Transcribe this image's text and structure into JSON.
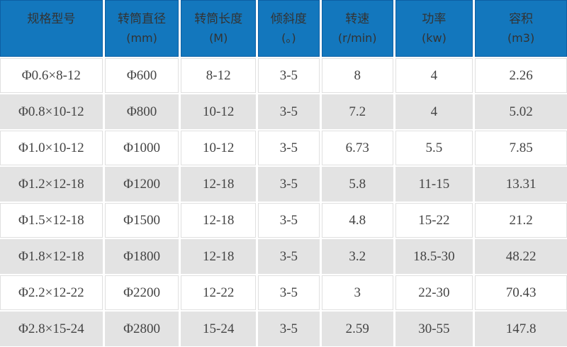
{
  "chart_data": {
    "type": "table",
    "columns": [
      {
        "title": "规格型号",
        "unit": ""
      },
      {
        "title": "转筒直径",
        "unit": "(mm)"
      },
      {
        "title": "转筒长度",
        "unit": "(M)"
      },
      {
        "title": "倾斜度",
        "unit": "(。)"
      },
      {
        "title": "转速",
        "unit": "(r/min)"
      },
      {
        "title": "功率",
        "unit": "(kw)"
      },
      {
        "title": "容积",
        "unit": "(m3)"
      }
    ],
    "rows": [
      [
        "Φ0.6×8-12",
        "Φ600",
        "8-12",
        "3-5",
        "8",
        "4",
        "2.26"
      ],
      [
        "Φ0.8×10-12",
        "Φ800",
        "10-12",
        "3-5",
        "7.2",
        "4",
        "5.02"
      ],
      [
        "Φ1.0×10-12",
        "Φ1000",
        "10-12",
        "3-5",
        "6.73",
        "5.5",
        "7.85"
      ],
      [
        "Φ1.2×12-18",
        "Φ1200",
        "12-18",
        "3-5",
        "5.8",
        "11-15",
        "13.31"
      ],
      [
        "Φ1.5×12-18",
        "Φ1500",
        "12-18",
        "3-5",
        "4.8",
        "15-22",
        "21.2"
      ],
      [
        "Φ1.8×12-18",
        "Φ1800",
        "12-18",
        "3-5",
        "3.2",
        "18.5-30",
        "48.22"
      ],
      [
        "Φ2.2×12-22",
        "Φ2200",
        "12-22",
        "3-5",
        "3",
        "22-30",
        "70.43"
      ],
      [
        "Φ2.8×15-24",
        "Φ2800",
        "15-24",
        "3-5",
        "2.59",
        "30-55",
        "147.8"
      ]
    ]
  },
  "colors": {
    "header_bg": "#1377bd",
    "header_border": "#0d5fa4",
    "header_text": "#333333",
    "row_alt_bg": "#e3e3e3",
    "cell_border": "#e0e0e0",
    "body_text": "#444444"
  }
}
